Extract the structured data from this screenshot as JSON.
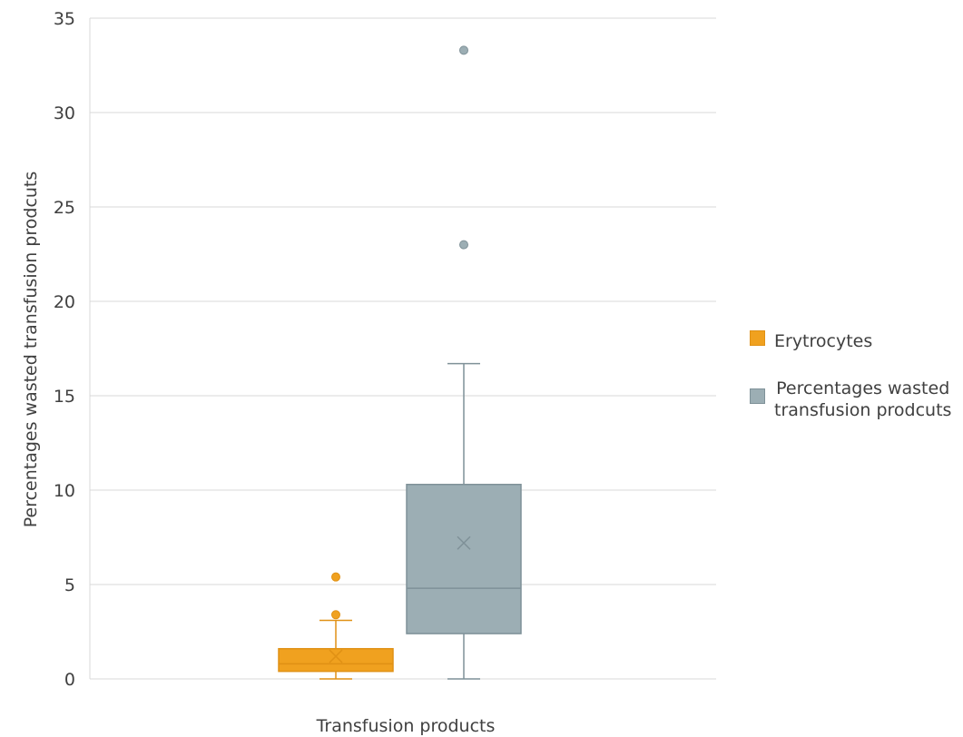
{
  "chart_data": {
    "type": "boxplot",
    "title": "",
    "xlabel": "Transfusion products",
    "ylabel": "Percentages wasted transfusion prodcuts",
    "ylim": [
      0,
      35
    ],
    "yticks": [
      0,
      5,
      10,
      15,
      20,
      25,
      30,
      35
    ],
    "grid": true,
    "legend_position": "right",
    "series": [
      {
        "name": "Erytrocytes",
        "color": "#F0A11F",
        "min": 0,
        "q1": 0.4,
        "median": 0.8,
        "q3": 1.6,
        "max": 3.1,
        "mean": 1.2,
        "outliers": [
          3.4,
          5.4
        ]
      },
      {
        "name": "Percentages wasted transfusion prodcuts",
        "color": "#9CAEB4",
        "min": 0,
        "q1": 2.4,
        "median": 4.8,
        "q3": 10.3,
        "max": 16.7,
        "mean": 7.2,
        "outliers": [
          23.0,
          33.3
        ]
      }
    ]
  },
  "legend": {
    "items": [
      {
        "label_lines": [
          "Erytrocytes"
        ]
      },
      {
        "label_lines": [
          "Percentages wasted",
          "transfusion prodcuts"
        ]
      }
    ]
  }
}
